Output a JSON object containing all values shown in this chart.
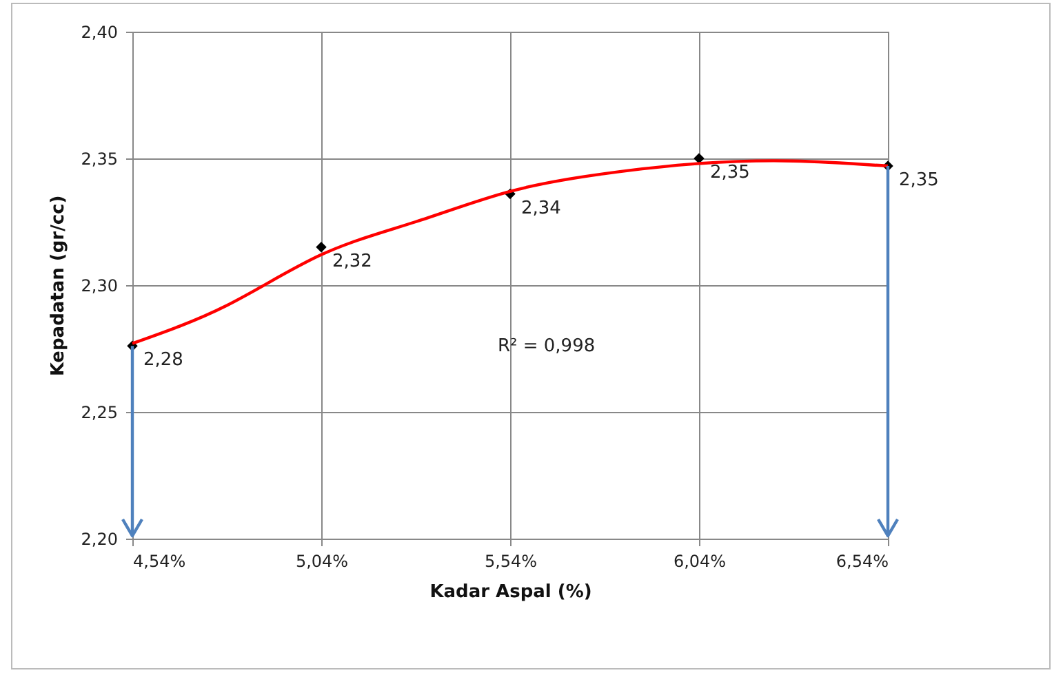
{
  "chart_data": {
    "type": "scatter",
    "xlabel": "Kadar Aspal (%)",
    "ylabel": "Kepadatan (gr/cc)",
    "xlim": [
      4.54,
      6.54
    ],
    "xticks": [
      {
        "value": 4.54,
        "label": "4,54%"
      },
      {
        "value": 5.04,
        "label": "5,04%"
      },
      {
        "value": 5.54,
        "label": "5,54%"
      },
      {
        "value": 6.04,
        "label": "6,04%"
      },
      {
        "value": 6.54,
        "label": "6,54%"
      }
    ],
    "ylim": [
      2.2,
      2.4
    ],
    "yticks": [
      {
        "value": 2.2,
        "label": "2,20"
      },
      {
        "value": 2.25,
        "label": "2,25"
      },
      {
        "value": 2.3,
        "label": "2,30"
      },
      {
        "value": 2.35,
        "label": "2,35"
      },
      {
        "value": 2.4,
        "label": "2,40"
      }
    ],
    "grid": true,
    "annotations": [
      "R² = 0,998"
    ],
    "series": [
      {
        "marker": "diamond",
        "color": "#000000",
        "x": [
          4.54,
          5.04,
          5.54,
          6.04,
          6.54
        ],
        "values": [
          2.276,
          2.315,
          2.336,
          2.35,
          2.347
        ],
        "value_labels": [
          "2,28",
          "2,32",
          "2,34",
          "2,35",
          "2,35"
        ]
      },
      {
        "type": "line",
        "color": "#ff0000",
        "line_style": "solid",
        "x": [
          4.54,
          4.79,
          5.04,
          5.29,
          5.54,
          5.79,
          6.04,
          6.29,
          6.54
        ],
        "values": [
          2.277,
          2.292,
          2.312,
          2.325,
          2.337,
          2.344,
          2.348,
          2.349,
          2.347
        ]
      }
    ]
  }
}
